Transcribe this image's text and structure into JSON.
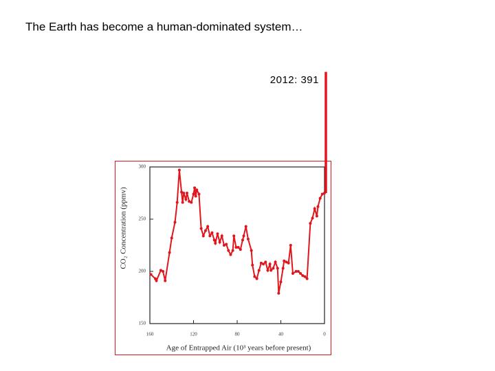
{
  "chart_data": {
    "type": "line",
    "title": "The Earth has become a human-dominated system…",
    "x_label": "Age of Entrapped Air (10³ years before present)",
    "y_label": "CO₂ Concentration (ppmv)",
    "xlim": [
      160,
      0
    ],
    "xticks": [
      160,
      120,
      80,
      40,
      0
    ],
    "ylim": [
      150,
      300
    ],
    "yticks": [
      150,
      200,
      250,
      300
    ],
    "x": [
      159,
      155,
      154,
      150,
      148,
      146,
      142,
      140,
      137,
      135,
      133,
      131,
      130,
      129,
      127,
      126,
      124,
      122,
      120,
      119,
      118,
      117,
      115,
      113,
      111,
      109,
      107,
      105,
      103,
      101,
      100,
      98,
      96,
      94,
      92,
      90,
      88,
      86,
      84,
      83,
      81,
      79,
      77,
      75,
      74,
      72,
      70,
      67,
      66,
      64,
      62,
      60,
      58,
      56,
      54,
      52,
      50,
      49,
      47,
      45,
      43,
      42,
      40,
      38,
      37,
      35,
      33,
      31,
      29,
      26,
      24,
      22,
      20,
      18,
      16,
      13,
      11,
      9,
      7,
      6,
      4,
      2,
      0
    ],
    "series": [
      {
        "color": "#e0161c",
        "values": [
          197,
          193,
          191,
          201,
          200,
          191,
          218,
          232,
          247,
          266,
          297,
          276,
          266,
          275,
          269,
          275,
          267,
          266,
          274,
          280,
          272,
          278,
          274,
          241,
          234,
          239,
          243,
          234,
          237,
          230,
          227,
          236,
          228,
          234,
          225,
          226,
          220,
          216,
          220,
          234,
          223,
          223,
          221,
          230,
          234,
          243,
          231,
          220,
          206,
          195,
          193,
          201,
          208,
          207,
          209,
          201,
          207,
          201,
          203,
          209,
          203,
          179,
          190,
          203,
          210,
          209,
          208,
          225,
          198,
          200,
          200,
          198,
          196,
          195,
          193,
          246,
          251,
          260,
          253,
          262,
          270,
          274,
          275
        ]
      }
    ],
    "annotation": {
      "label": "2012: 391",
      "x": 0,
      "value": 391
    }
  }
}
